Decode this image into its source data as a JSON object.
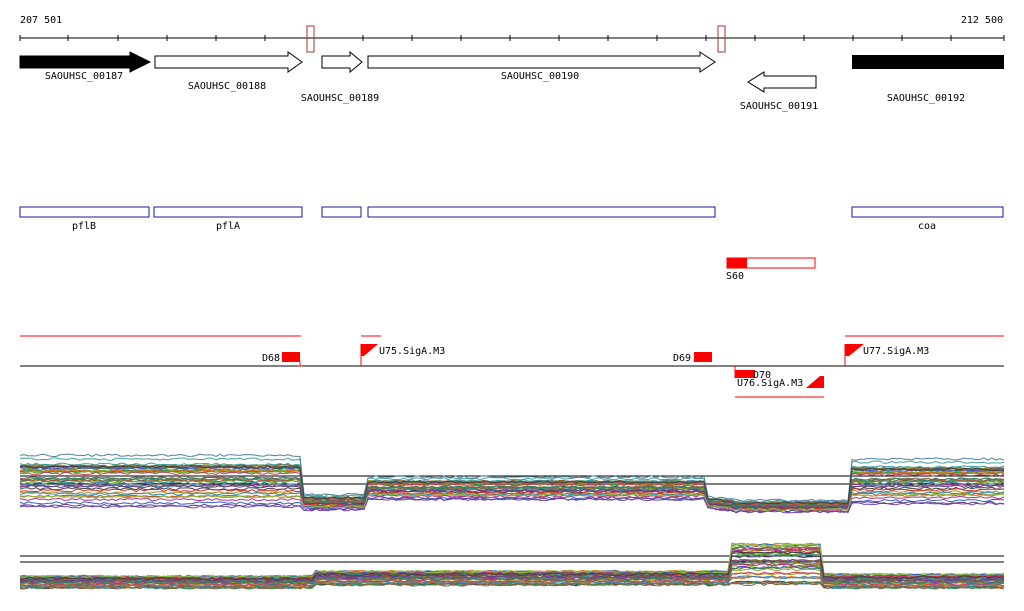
{
  "ruler": {
    "start_label": "207 501",
    "end_label": "212 500"
  },
  "colors": {
    "gene_fill": "#000000",
    "gene_outline": "#000000",
    "annotation_outline": "#1a1a9a",
    "feature_red": "#ff0000",
    "axis": "#000000",
    "profile_colors": [
      "#8a5a00",
      "#c08a00",
      "#a0a020",
      "#6aaa20",
      "#209a50",
      "#2090c0",
      "#3060d0",
      "#7040b0",
      "#b03090",
      "#d03030",
      "#e07020",
      "#40a0a0",
      "#806040",
      "#5080a0",
      "#a06040",
      "#604080",
      "#90c040",
      "#c04060",
      "#308060",
      "#404040"
    ]
  },
  "genes": [
    {
      "id": "SAOUHSC_00187",
      "label": "SAOUHSC_00187",
      "strand": "+",
      "filled": true
    },
    {
      "id": "SAOUHSC_00188",
      "label": "SAOUHSC_00188",
      "strand": "+",
      "filled": false
    },
    {
      "id": "SAOUHSC_00189",
      "label": "SAOUHSC_00189",
      "strand": "+",
      "filled": false
    },
    {
      "id": "SAOUHSC_00190",
      "label": "SAOUHSC_00190",
      "strand": "+",
      "filled": false
    },
    {
      "id": "SAOUHSC_00191",
      "label": "SAOUHSC_00191",
      "strand": "-",
      "filled": false
    },
    {
      "id": "SAOUHSC_00192",
      "label": "SAOUHSC_00192",
      "strand": "+",
      "filled": true
    }
  ],
  "annotations": [
    {
      "label": "pflB"
    },
    {
      "label": "pflA"
    },
    {
      "label": ""
    },
    {
      "label": ""
    },
    {
      "label": "coa"
    }
  ],
  "segment": {
    "label": "S60"
  },
  "features": {
    "D68": "D68",
    "D69": "D69",
    "D70": "D70",
    "U75": "U75.SigA.M3",
    "U76": "U76.SigA.M3",
    "U77": "U77.SigA.M3"
  }
}
